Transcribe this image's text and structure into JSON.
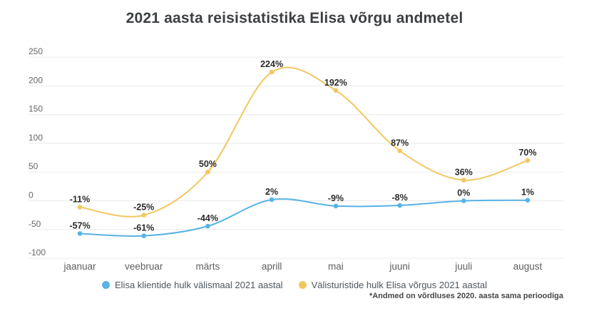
{
  "title": "2021 aasta reisistatistika Elisa võrgu andmetel",
  "footnote": "*Andmed on võrdluses 2020. aasta sama perioodiga",
  "colors": {
    "blue_series": "#57B3E6",
    "yellow_series": "#F2C75F",
    "grid": "#eaeaea",
    "tick_text": "#666666",
    "data_label_text": "#2b2b2b",
    "title_text": "#3c4043"
  },
  "chart_data": {
    "type": "line",
    "title": "2021 aasta reisistatistika Elisa võrgu andmetel",
    "categories": [
      "jaanuar",
      "veebruar",
      "märts",
      "aprill",
      "mai",
      "juuni",
      "juuli",
      "august"
    ],
    "y_ticks": [
      250,
      200,
      150,
      100,
      50,
      0,
      -50,
      -100
    ],
    "ylim": [
      -100,
      250
    ],
    "grid": true,
    "legend_position": "bottom",
    "unit": "%",
    "series": [
      {
        "name": "Elisa klientide hulk välismaal 2021 aastal",
        "color": "#57B3E6",
        "values": [
          -57,
          -61,
          -44,
          2,
          -9,
          -8,
          0,
          1
        ],
        "labels": [
          "-57%",
          "-61%",
          "-44%",
          "2%",
          "-9%",
          "-8%",
          "0%",
          "1%"
        ]
      },
      {
        "name": "Välisturistide hulk Elisa võrgus 2021 aastal",
        "color": "#F2C75F",
        "values": [
          -11,
          -25,
          50,
          224,
          192,
          87,
          36,
          70
        ],
        "labels": [
          "-11%",
          "-25%",
          "50%",
          "224%",
          "192%",
          "87%",
          "36%",
          "70%"
        ]
      }
    ]
  }
}
